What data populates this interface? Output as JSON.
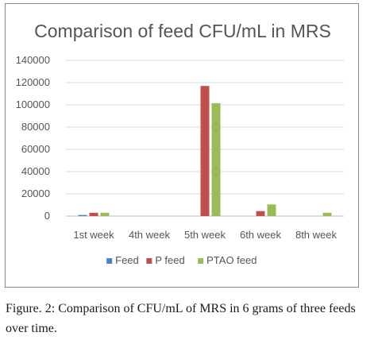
{
  "chart_data": {
    "type": "bar",
    "title": "Comparison of feed CFU/mL in MRS",
    "xlabel": "",
    "ylabel": "",
    "categories": [
      "1st week",
      "4th week",
      "5th week",
      "6th week",
      "8th week"
    ],
    "series": [
      {
        "name": "Feed",
        "color": "#4f81bd",
        "values": [
          1000,
          0,
          0,
          0,
          0
        ]
      },
      {
        "name": "P feed",
        "color": "#c0504d",
        "values": [
          3000,
          0,
          117000,
          4500,
          0
        ]
      },
      {
        "name": "PTAO feed",
        "color": "#9bbb59",
        "values": [
          3000,
          0,
          101500,
          10500,
          3000
        ]
      }
    ],
    "ylim": [
      0,
      140000
    ],
    "yticks": [
      "0",
      "20000",
      "40000",
      "60000",
      "80000",
      "100000",
      "120000",
      "140000"
    ],
    "grid": true,
    "legend_position": "bottom"
  },
  "caption": "Figure. 2: Comparison of CFU/mL of MRS in 6 grams of three feeds over time."
}
